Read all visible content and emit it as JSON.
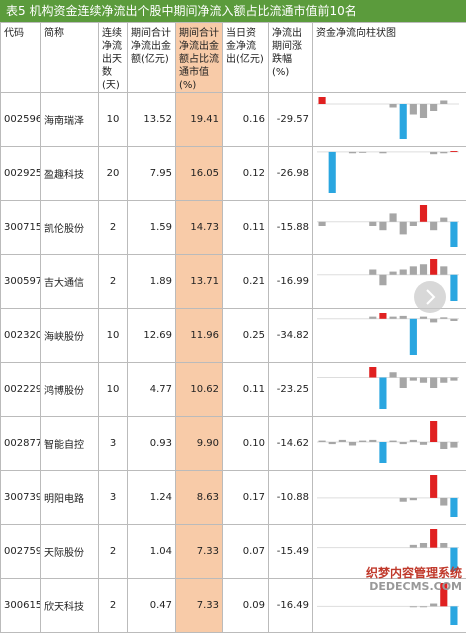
{
  "title": "表5 机构资金连续净流出个股中期间净流入额占比流通市值前10名",
  "columns": [
    "代码",
    "简称",
    "连续净流出天数(天)",
    "期间合计净流出金额(亿元)",
    "期间合计净流出金额占比流通市值(%)",
    "当日资金净流出(亿元)",
    "净流出期间涨跌幅(%)",
    "资金净流向柱状图"
  ],
  "rows": [
    {
      "cells": [
        "002596",
        "海南瑞泽",
        "10",
        "13.52",
        "19.41",
        "0.16",
        "-29.57"
      ],
      "flows": [
        2,
        0,
        0,
        0,
        0,
        0,
        0,
        -1,
        -10,
        -3,
        -4,
        -2,
        1,
        0
      ]
    },
    {
      "cells": [
        "002925",
        "盈趣科技",
        "20",
        "7.95",
        "16.05",
        "0.12",
        "-26.98"
      ],
      "flows": [
        0,
        -9,
        0,
        -0.3,
        -0.2,
        0,
        -0.3,
        0,
        0,
        0,
        0,
        -0.5,
        -0.3,
        0.2
      ]
    },
    {
      "cells": [
        "300715",
        "凯伦股份",
        "2",
        "1.59",
        "14.73",
        "0.11",
        "-15.88"
      ],
      "flows": [
        -0.5,
        0,
        0,
        0,
        0,
        -0.5,
        -1,
        1,
        -1.5,
        -0.5,
        2,
        -1,
        0.5,
        -3
      ]
    },
    {
      "cells": [
        "300597",
        "吉大通信",
        "2",
        "1.89",
        "13.71",
        "0.21",
        "-16.99"
      ],
      "flows": [
        0,
        0,
        0,
        0,
        0,
        0.5,
        -1,
        0.3,
        0.5,
        0.8,
        1,
        1.5,
        0.8,
        -2.5
      ]
    },
    {
      "cells": [
        "002320",
        "海峡股份",
        "10",
        "12.69",
        "11.96",
        "0.25",
        "-34.82"
      ],
      "flows": [
        0,
        0,
        0,
        0,
        0,
        0.3,
        0.8,
        0.3,
        0.4,
        -5,
        0.3,
        -0.5,
        0.2,
        -0.3
      ]
    },
    {
      "cells": [
        "002229",
        "鸿博股份",
        "10",
        "4.77",
        "10.62",
        "0.11",
        "-23.25"
      ],
      "flows": [
        0,
        0,
        0,
        0,
        0,
        1,
        -3,
        0.5,
        -1,
        -0.3,
        -0.5,
        -1,
        -0.5,
        -0.3
      ]
    },
    {
      "cells": [
        "002877",
        "智能自控",
        "3",
        "0.93",
        "9.90",
        "0.10",
        "-14.62"
      ],
      "flows": [
        0.2,
        -0.3,
        0.3,
        -0.5,
        0.2,
        0.3,
        -3,
        0.2,
        -0.3,
        0.3,
        -0.4,
        3,
        -1,
        -0.8
      ]
    },
    {
      "cells": [
        "300739",
        "明阳电路",
        "3",
        "1.24",
        "8.63",
        "0.17",
        "-10.88"
      ],
      "flows": [
        0,
        0,
        0,
        0,
        0,
        0,
        0,
        0,
        -0.5,
        -0.3,
        0,
        3,
        -1,
        -2.5
      ]
    },
    {
      "cells": [
        "002759",
        "天际股份",
        "2",
        "1.04",
        "7.33",
        "0.07",
        "-15.49"
      ],
      "flows": [
        0,
        0,
        0,
        0,
        0,
        0,
        0,
        0,
        0,
        0.3,
        0.5,
        2,
        0.5,
        -2.5
      ]
    },
    {
      "cells": [
        "300615",
        "欣天科技",
        "2",
        "0.47",
        "7.33",
        "0.09",
        "-16.49"
      ],
      "flows": [
        0,
        0,
        0,
        0,
        0,
        0,
        0,
        0,
        0,
        -0.1,
        -0.1,
        0.3,
        2.5,
        -2
      ]
    }
  ],
  "watermark": [
    "织梦内容管理系统",
    "DEDECMS.COM"
  ]
}
